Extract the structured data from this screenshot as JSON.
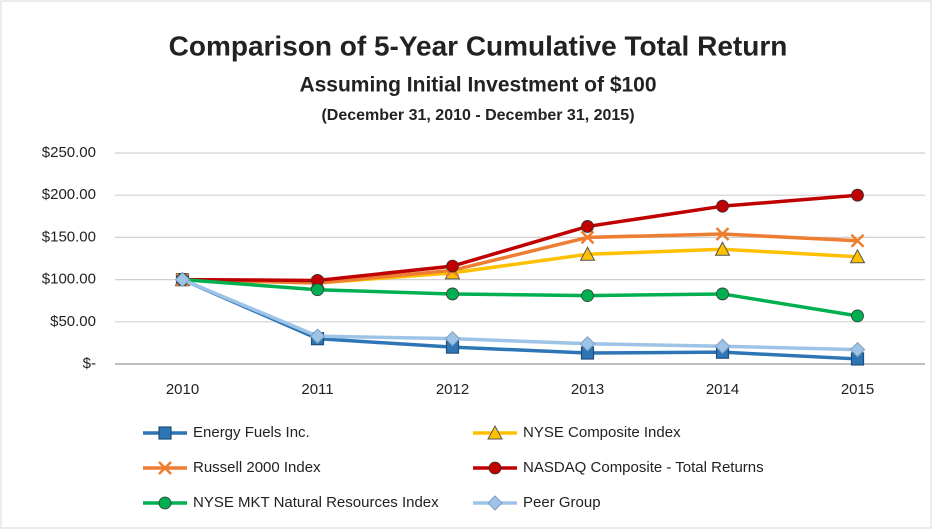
{
  "chart_data": {
    "type": "line",
    "title": "Comparison of 5-Year Cumulative Total Return",
    "subtitle": "Assuming Initial Investment of $100",
    "date_range": "(December 31, 2010 - December 31, 2015)",
    "categories": [
      "2010",
      "2011",
      "2012",
      "2013",
      "2014",
      "2015"
    ],
    "ylim": [
      0,
      250
    ],
    "yticks": [
      {
        "value": 0,
        "label": "$-"
      },
      {
        "value": 50,
        "label": "$50.00"
      },
      {
        "value": 100,
        "label": "$100.00"
      },
      {
        "value": 150,
        "label": "$150.00"
      },
      {
        "value": 200,
        "label": "$200.00"
      },
      {
        "value": 250,
        "label": "$250.00"
      }
    ],
    "grid": true,
    "legend": "bottom",
    "series": [
      {
        "name": "Energy Fuels Inc.",
        "color": "#2e75b6",
        "marker": "square",
        "values": [
          100,
          30,
          20,
          13,
          14,
          6
        ]
      },
      {
        "name": "NYSE Composite Index",
        "color": "#ffc000",
        "marker": "triangle",
        "values": [
          100,
          96,
          108,
          130,
          136,
          127
        ]
      },
      {
        "name": "Russell 2000 Index",
        "color": "#ed7d31",
        "marker": "x",
        "values": [
          100,
          96,
          111,
          150,
          154,
          146
        ]
      },
      {
        "name": "NASDAQ Composite - Total Returns",
        "color": "#c00000",
        "marker": "circle",
        "values": [
          100,
          99,
          116,
          163,
          187,
          200
        ]
      },
      {
        "name": "NYSE MKT Natural Resources Index",
        "color": "#00b050",
        "marker": "circle",
        "values": [
          100,
          88,
          83,
          81,
          83,
          57
        ]
      },
      {
        "name": "Peer Group",
        "color": "#9dc3e6",
        "marker": "diamond",
        "values": [
          100,
          33,
          30,
          24,
          21,
          17
        ]
      }
    ]
  }
}
